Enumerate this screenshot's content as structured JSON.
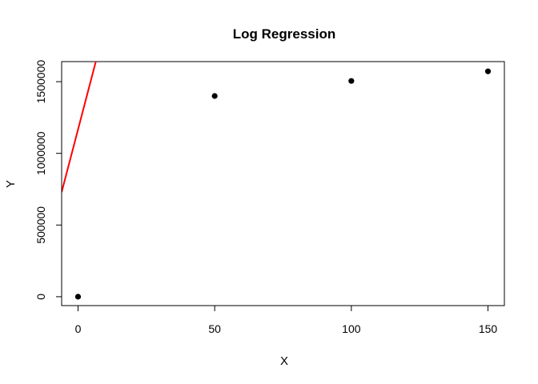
{
  "chart_data": {
    "type": "scatter",
    "title": "Log Regression",
    "xlabel": "X",
    "ylabel": "Y",
    "xlim": [
      -6,
      156
    ],
    "ylim": [
      -62000,
      1640000
    ],
    "x_ticks": [
      0,
      50,
      100,
      150
    ],
    "y_ticks": [
      0,
      500000,
      1000000,
      1500000
    ],
    "grid": false,
    "legend": "none",
    "series": [
      {
        "kind": "points",
        "color": "#000000",
        "points": [
          {
            "x": 0,
            "y": 0
          },
          {
            "x": 50,
            "y": 1400000
          },
          {
            "x": 100,
            "y": 1505000
          },
          {
            "x": 150,
            "y": 1572000
          }
        ]
      },
      {
        "kind": "line",
        "color": "#ff0000",
        "points": [
          {
            "x": -6,
            "y": 730000
          },
          {
            "x": 6.5,
            "y": 1640000
          }
        ]
      }
    ]
  }
}
